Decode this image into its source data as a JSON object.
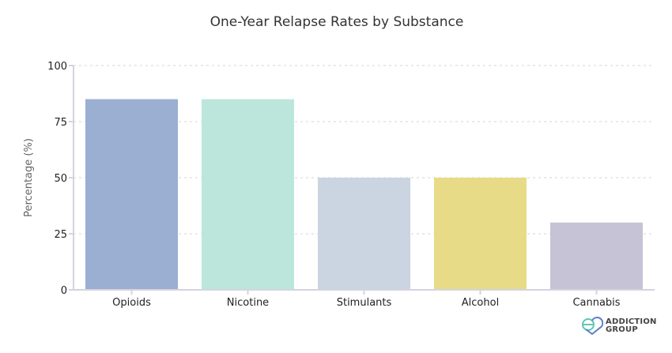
{
  "chart_data": {
    "type": "bar",
    "title": "One-Year Relapse Rates by Substance",
    "xlabel": "",
    "ylabel": "Percentage (%)",
    "categories": [
      "Opioids",
      "Nicotine",
      "Stimulants",
      "Alcohol",
      "Cannabis"
    ],
    "values": [
      85,
      85,
      50,
      50,
      30
    ],
    "colors": [
      "#9aafd1",
      "#bce6dc",
      "#cbd4e1",
      "#e8db87",
      "#c5c3d5"
    ],
    "ylim": [
      0,
      100
    ],
    "yticks": [
      0,
      25,
      50,
      75,
      100
    ],
    "grid": true
  },
  "logo": {
    "line1": "ADDICTION",
    "line2": "GROUP"
  }
}
